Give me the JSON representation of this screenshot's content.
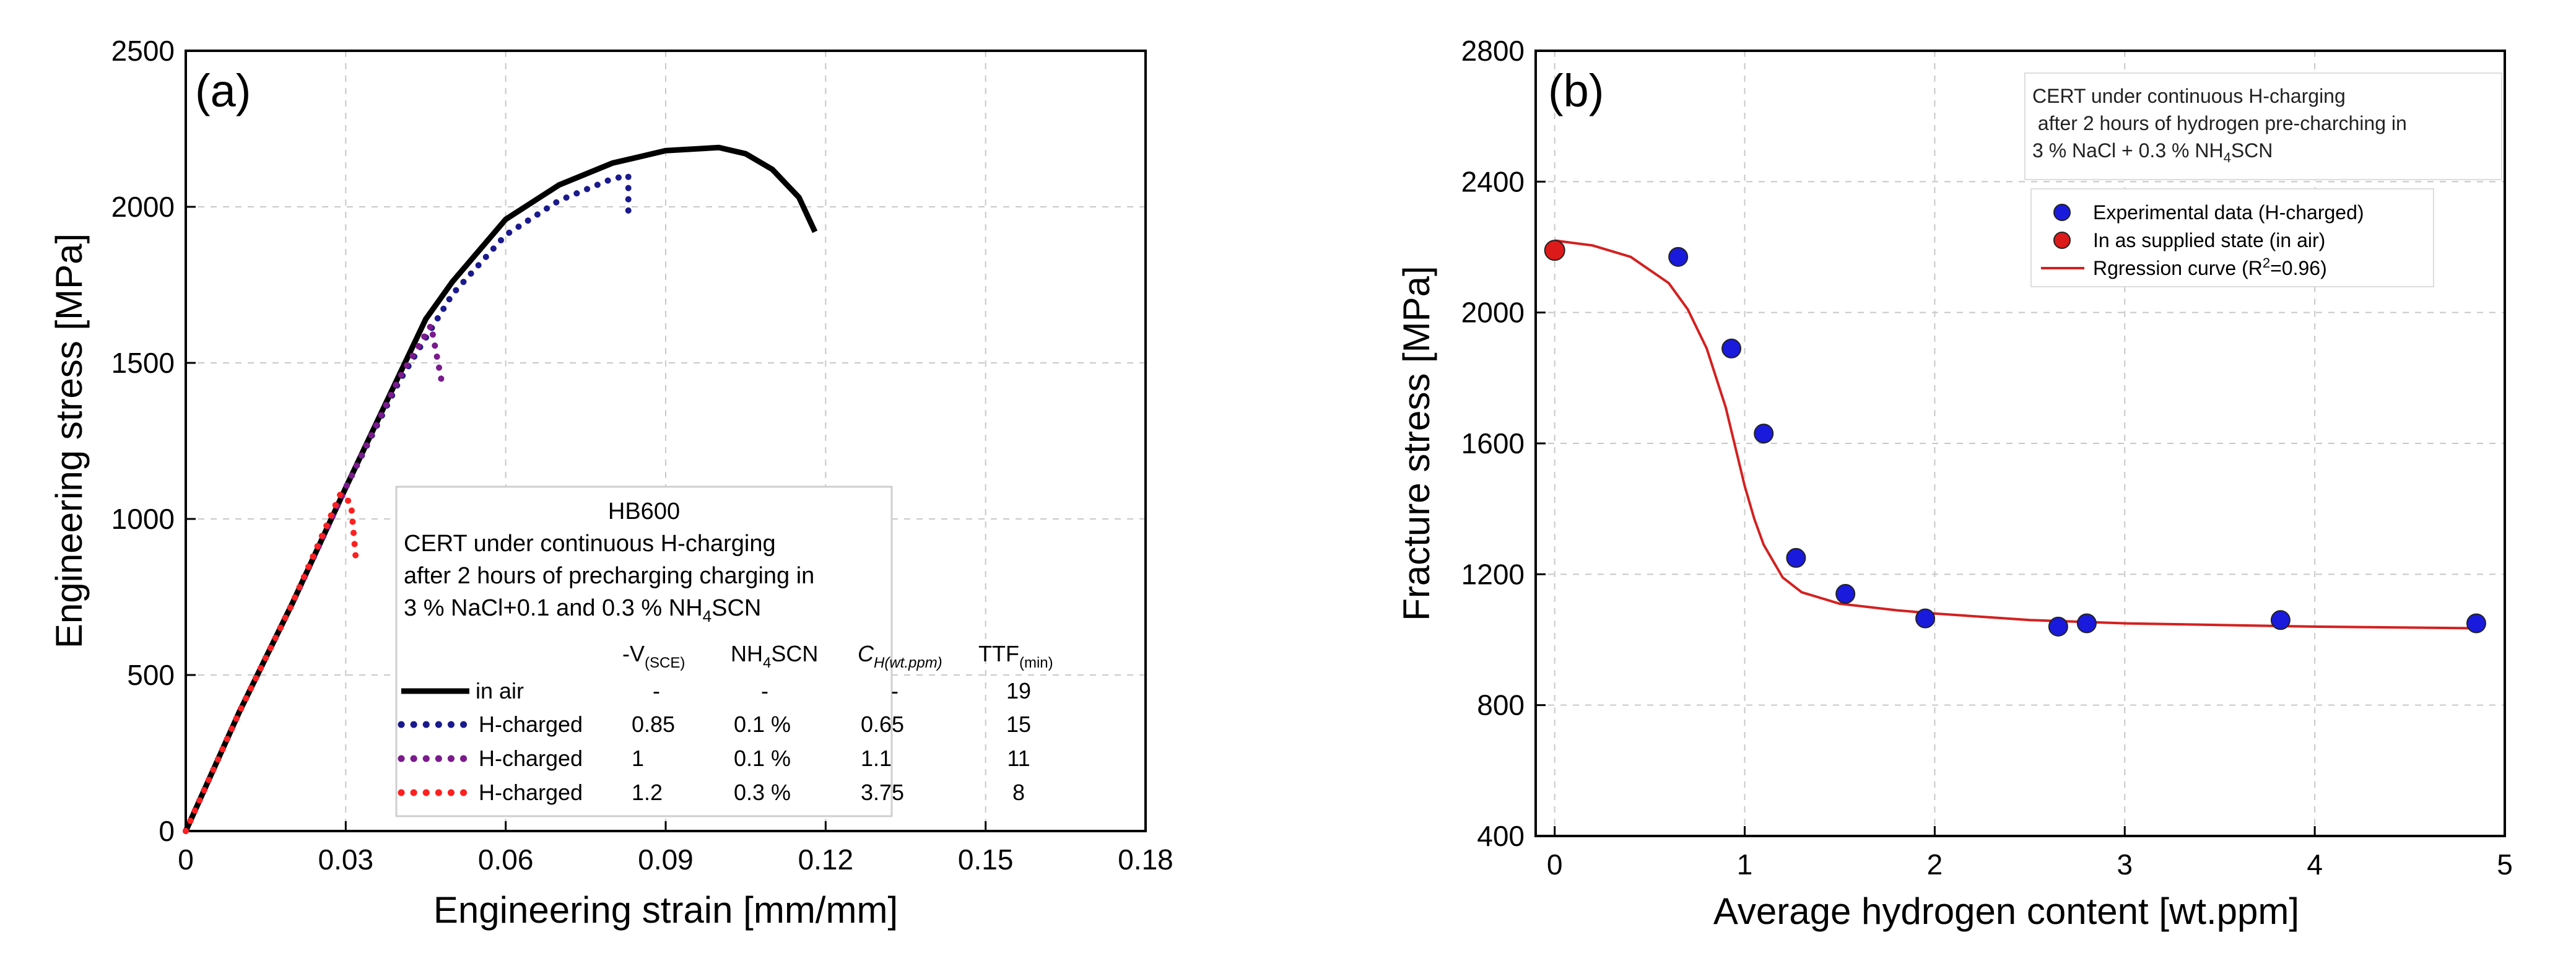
{
  "chart_data": [
    {
      "panel_label": "(a)",
      "type": "line",
      "xlabel": "Engineering strain [mm/mm]",
      "ylabel": "Engineering stress [MPa]",
      "xlim": [
        0,
        0.18
      ],
      "ylim": [
        0,
        2500
      ],
      "xticks": [
        "0",
        "0.03",
        "0.06",
        "0.09",
        "0.12",
        "0.15",
        "0.18"
      ],
      "yticks": [
        "0",
        "500",
        "1000",
        "1500",
        "2000",
        "2500"
      ],
      "grid": true,
      "annotation": {
        "title": "HB600",
        "lines": [
          "CERT under continuous H-charging",
          "after 2 hours of precharging charging in"
        ],
        "last_line_prefix": "3 % NaCl+0.1 and 0.3 % NH",
        "last_line_sub": "4",
        "last_line_suffix": "SCN"
      },
      "legend_header": {
        "v_main": "-V",
        "v_sub": "(SCE)",
        "nh4": "NH",
        "nh4_sub": "4",
        "nh4_suffix": "SCN",
        "ch_main": "C",
        "ch_sub": "H(wt.ppm)",
        "ttf_main": "TTF",
        "ttf_sub": "(min)"
      },
      "series": [
        {
          "name": "in air",
          "color": "#000000",
          "style": "solid",
          "v": "-",
          "nh4scn": "-",
          "ch": "-",
          "ttf": "19",
          "x": [
            0,
            0.01,
            0.02,
            0.03,
            0.04,
            0.045,
            0.05,
            0.06,
            0.07,
            0.08,
            0.09,
            0.1,
            0.105,
            0.11,
            0.115,
            0.118
          ],
          "y": [
            0,
            380,
            730,
            1100,
            1460,
            1640,
            1760,
            1960,
            2070,
            2140,
            2180,
            2190,
            2170,
            2120,
            2030,
            1920
          ]
        },
        {
          "name": "H-charged",
          "color": "#1a1a8c",
          "style": "dotted",
          "v": "0.85",
          "nh4scn": "0.1 %",
          "ch": "0.65",
          "ttf": "15",
          "x": [
            0,
            0.01,
            0.02,
            0.03,
            0.04,
            0.05,
            0.06,
            0.07,
            0.08,
            0.083,
            0.083
          ],
          "y": [
            0,
            380,
            730,
            1100,
            1440,
            1720,
            1910,
            2020,
            2090,
            2100,
            1980
          ]
        },
        {
          "name": "H-charged",
          "color": "#7a1a8c",
          "style": "dotted",
          "v": "1",
          "nh4scn": "0.1 %",
          "ch": "1.1",
          "ttf": "11",
          "x": [
            0,
            0.01,
            0.02,
            0.03,
            0.04,
            0.046,
            0.048
          ],
          "y": [
            0,
            380,
            730,
            1100,
            1450,
            1620,
            1440
          ]
        },
        {
          "name": "H-charged",
          "color": "#ff2020",
          "style": "dotted",
          "v": "1.2",
          "nh4scn": "0.3 %",
          "ch": "3.75",
          "ttf": "8",
          "x": [
            0,
            0.01,
            0.02,
            0.029,
            0.031,
            0.032
          ],
          "y": [
            0,
            380,
            730,
            1080,
            1050,
            850
          ]
        }
      ]
    },
    {
      "panel_label": "(b)",
      "type": "scatter",
      "xlabel": "Average hydrogen content [wt.ppm]",
      "ylabel": "Fracture stress [MPa]",
      "xlim": [
        -0.1,
        5
      ],
      "ylim": [
        400,
        2800
      ],
      "xticks": [
        "0",
        "1",
        "2",
        "3",
        "4",
        "5"
      ],
      "yticks": [
        "400",
        "800",
        "1200",
        "1600",
        "2000",
        "2400",
        "2800"
      ],
      "grid": true,
      "annotation": {
        "lines": [
          "CERT under continuous H-charging",
          " after 2 hours of hydrogen pre-charching in"
        ],
        "last_line_prefix": "3 % NaCl + 0.3 % NH",
        "last_line_sub": "4",
        "last_line_suffix": "SCN"
      },
      "legend": {
        "experimental": "Experimental data (H-charged)",
        "supplied": "In as supplied state (in air)",
        "regression_prefix": "Rgression curve (R",
        "regression_sup": "2",
        "regression_suffix": "=0.96)"
      },
      "colors": {
        "experimental": "#1a1adc",
        "supplied": "#dc1a1a",
        "regression": "#d42020"
      },
      "experimental": {
        "x": [
          0.65,
          0.93,
          1.1,
          1.27,
          1.53,
          1.95,
          2.65,
          2.8,
          3.82,
          4.85
        ],
        "y": [
          2170,
          1890,
          1630,
          1250,
          1140,
          1065,
          1040,
          1050,
          1060,
          1050
        ]
      },
      "supplied": {
        "x": [
          0
        ],
        "y": [
          2190
        ]
      },
      "regression": {
        "x": [
          0,
          0.2,
          0.4,
          0.6,
          0.7,
          0.8,
          0.9,
          0.95,
          1.0,
          1.05,
          1.1,
          1.2,
          1.3,
          1.5,
          1.8,
          2.0,
          2.5,
          3.0,
          4.0,
          4.85
        ],
        "y": [
          2220,
          2205,
          2170,
          2090,
          2010,
          1890,
          1710,
          1590,
          1470,
          1370,
          1290,
          1190,
          1145,
          1110,
          1090,
          1080,
          1060,
          1050,
          1040,
          1035
        ]
      }
    }
  ]
}
